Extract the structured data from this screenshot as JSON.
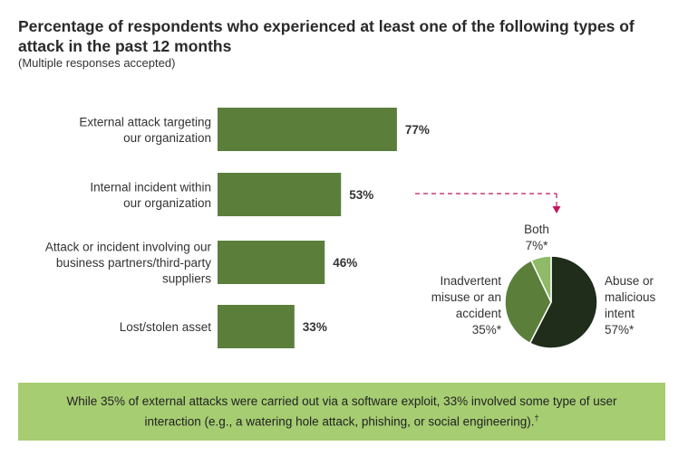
{
  "chart_data": [
    {
      "type": "bar",
      "orientation": "horizontal",
      "title": "Percentage of respondents who experienced at least one of the following types of attack in the past 12 months",
      "subtitle": "(Multiple responses accepted)",
      "categories": [
        [
          "External attack targeting",
          "our organization"
        ],
        [
          "Internal incident within",
          "our organization"
        ],
        [
          "Attack or incident involving our",
          "business partners/third-party",
          "suppliers"
        ],
        [
          "Lost/stolen asset"
        ]
      ],
      "values": [
        77,
        53,
        46,
        33
      ],
      "labels": [
        "77%",
        "53%",
        "46%",
        "33%"
      ],
      "unit": "%",
      "bar_color": "#5b7f3b"
    },
    {
      "type": "pie",
      "slices": [
        {
          "name": "Abuse or malicious intent",
          "label_lines": [
            "Abuse or",
            "malicious",
            "intent",
            "57%*"
          ],
          "value": 57,
          "color": "#1f2d1a"
        },
        {
          "name": "Inadvertent misuse or an accident",
          "label_lines": [
            "Inadvertent",
            "misuse or an",
            "accident",
            "35%*"
          ],
          "value": 35,
          "color": "#5b7f3b"
        },
        {
          "name": "Both",
          "label_lines": [
            "Both",
            "7%*"
          ],
          "value": 7,
          "color": "#8fba68"
        }
      ]
    }
  ],
  "callout": {
    "text": "While 35% of external attacks were carried out via a software exploit, 33% involved some type of user interaction (e.g., a watering hole attack, phishing, or social engineering).",
    "footnote_mark": "†",
    "background": "#a6cd72"
  }
}
